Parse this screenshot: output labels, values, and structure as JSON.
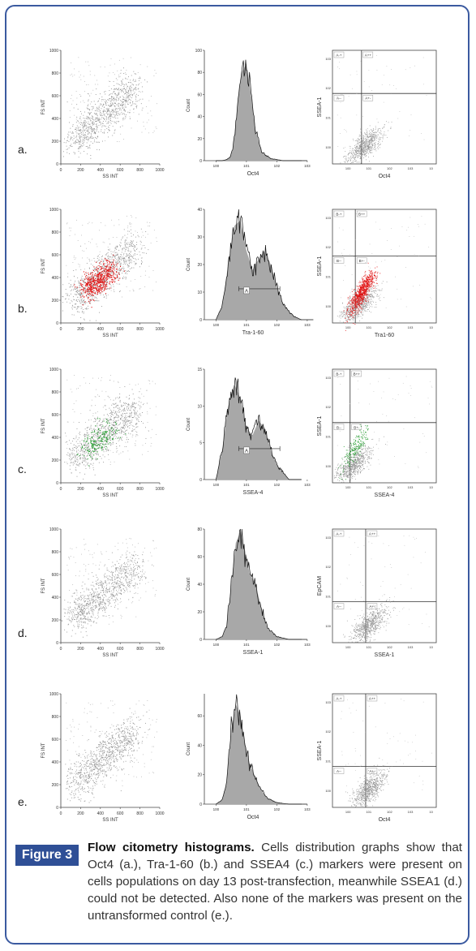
{
  "figure_label": "Figure 3",
  "caption_title": "Flow citometry histograms.",
  "caption_body": "Cells distribution graphs show that Oct4 (a.), Tra-1-60 (b.) and SSEA4 (c.) markers were present on cells populations on day 13 post-transfection, meanwhile SSEA1 (d.) could not be detected. Also none of the markers was present on the untransformed control (e.).",
  "colors": {
    "frame": "#3b5aa0",
    "label_bg": "#2f4f96",
    "gray_dots": "#8f8f8f",
    "red_dots": "#e01010",
    "green_dots": "#1f9a2a",
    "hist_fill": "#a8a8a8"
  },
  "chart_data": [
    {
      "id": "a-scatter",
      "type": "scatter",
      "row": "a.",
      "xlabel": "SS INT",
      "ylabel": "FS INT",
      "x_ticks": [
        "0",
        "200",
        "400",
        "600",
        "800",
        "1000"
      ],
      "y_ticks": [
        "0",
        "200",
        "400",
        "600",
        "800",
        "1000"
      ],
      "xlim": [
        0,
        1000
      ],
      "ylim": [
        0,
        1000
      ],
      "points": [
        [
          220,
          260
        ],
        [
          300,
          330
        ],
        [
          400,
          420
        ],
        [
          500,
          480
        ],
        [
          600,
          560
        ],
        [
          700,
          620
        ],
        [
          800,
          700
        ],
        [
          200,
          210
        ],
        [
          350,
          360
        ]
      ]
    },
    {
      "id": "a-hist",
      "type": "area",
      "row": "a.",
      "xlabel": "Oct4",
      "ylabel": "Count",
      "y_ticks": [
        "0",
        "20",
        "40",
        "60",
        "80",
        "100"
      ],
      "ylim": [
        0,
        100
      ],
      "x_ticks": [
        "10^0",
        "10^1",
        "10^2",
        "10^3"
      ],
      "x": [
        0.0,
        0.2,
        0.35,
        0.45,
        0.55,
        0.65,
        0.75,
        0.85,
        1.0,
        1.15,
        1.3,
        1.5,
        1.8,
        2.2,
        3.0
      ],
      "values": [
        0,
        0,
        1,
        3,
        10,
        35,
        62,
        80,
        88,
        60,
        28,
        8,
        2,
        0,
        0
      ]
    },
    {
      "id": "a-quad",
      "type": "scatter",
      "row": "a.",
      "xlabel": "Oct4",
      "ylabel": "SSEA-1",
      "gates": [
        "A-+",
        "A++",
        "A--",
        "A+-"
      ],
      "gate_x": 0.28,
      "gate_y": 0.38,
      "x_ticks": [
        "10^0",
        "10^1",
        "10^2",
        "10^3",
        "10"
      ],
      "y_ticks": [
        "10^0",
        "10^1",
        "10^2",
        "10^3"
      ]
    },
    {
      "id": "b-scatter",
      "type": "scatter",
      "row": "b.",
      "xlabel": "SS INT",
      "ylabel": "FS INT",
      "x_ticks": [
        "0",
        "200",
        "400",
        "600",
        "800",
        "1000"
      ],
      "y_ticks": [
        "0",
        "200",
        "400",
        "600",
        "800",
        "1000"
      ],
      "xlim": [
        0,
        1000
      ],
      "ylim": [
        0,
        1000
      ],
      "series": [
        {
          "name": "",
          "color": "gray"
        },
        {
          "name": "",
          "color": "red"
        }
      ]
    },
    {
      "id": "b-hist",
      "type": "area",
      "row": "b.",
      "xlabel": "Tra-1-60",
      "ylabel": "Count",
      "y_ticks": [
        "0",
        "10",
        "20",
        "30",
        "40"
      ],
      "ylim": [
        0,
        40
      ],
      "x_ticks": [
        "10^0",
        "10^1",
        "10^2",
        "10^3"
      ],
      "gate_label": "A",
      "x": [
        0.0,
        0.2,
        0.4,
        0.6,
        0.8,
        1.0,
        1.2,
        1.4,
        1.6,
        1.8,
        2.0,
        2.2,
        2.4,
        2.6,
        2.8,
        3.2
      ],
      "values": [
        0,
        5,
        20,
        34,
        36,
        25,
        18,
        22,
        25,
        20,
        12,
        6,
        3,
        1,
        0,
        0
      ]
    },
    {
      "id": "b-quad",
      "type": "scatter",
      "row": "b.",
      "xlabel": "Tra1-60",
      "ylabel": "SSEA-1",
      "gates": [
        "B-+",
        "B++",
        "B--",
        "B+-"
      ],
      "gate_x": 0.22,
      "gate_y": 0.41,
      "x_ticks": [
        "10^0",
        "10^1",
        "10^2",
        "10^3",
        "10"
      ],
      "y_ticks": [
        "10^0",
        "10^1",
        "10^2",
        "10^3"
      ]
    },
    {
      "id": "c-scatter",
      "type": "scatter",
      "row": "c.",
      "xlabel": "SS INT",
      "ylabel": "FS INT",
      "x_ticks": [
        "0",
        "200",
        "400",
        "600",
        "800",
        "1000"
      ],
      "y_ticks": [
        "0",
        "200",
        "400",
        "600",
        "800",
        "1000"
      ],
      "xlim": [
        0,
        1000
      ],
      "ylim": [
        0,
        1000
      ],
      "series": [
        {
          "name": "",
          "color": "gray"
        },
        {
          "name": "",
          "color": "green"
        }
      ]
    },
    {
      "id": "c-hist",
      "type": "area",
      "row": "c.",
      "xlabel": "SSEA-4",
      "ylabel": "Count",
      "y_ticks": [
        "0",
        "5",
        "10",
        "15"
      ],
      "ylim": [
        0,
        15
      ],
      "x_ticks": [
        "10^0",
        "10^1",
        "10^2",
        "10^3"
      ],
      "gate_label": "A",
      "x": [
        0.0,
        0.2,
        0.4,
        0.6,
        0.8,
        1.0,
        1.2,
        1.4,
        1.6,
        1.8,
        2.0,
        2.2,
        2.4,
        2.8
      ],
      "values": [
        0,
        4,
        10,
        13,
        11,
        7,
        6,
        8,
        7,
        4,
        2,
        1,
        0,
        0
      ]
    },
    {
      "id": "c-quad",
      "type": "scatter",
      "row": "c.",
      "xlabel": "SSEA-4",
      "ylabel": "SSEA-1",
      "gates": [
        "B-+",
        "B++",
        "B--",
        "B+-"
      ],
      "gate_x": 0.17,
      "gate_y": 0.47,
      "x_ticks": [
        "10^0",
        "10^1",
        "10^2",
        "10^3",
        "10"
      ],
      "y_ticks": [
        "10^0",
        "10^1",
        "10^2",
        "10^3"
      ]
    },
    {
      "id": "d-scatter",
      "type": "scatter",
      "row": "d.",
      "xlabel": "SS INT",
      "ylabel": "FS INT",
      "x_ticks": [
        "0",
        "200",
        "400",
        "600",
        "800",
        "1000"
      ],
      "y_ticks": [
        "0",
        "200",
        "400",
        "600",
        "800",
        "1000"
      ],
      "xlim": [
        0,
        1000
      ],
      "ylim": [
        0,
        1000
      ]
    },
    {
      "id": "d-hist",
      "type": "area",
      "row": "d.",
      "xlabel": "SSEA-1",
      "ylabel": "Count",
      "y_ticks": [
        "0",
        "20",
        "40",
        "60",
        "80"
      ],
      "ylim": [
        0,
        80
      ],
      "x_ticks": [
        "10^0",
        "10^1",
        "10^2",
        "10^3"
      ],
      "x": [
        0.0,
        0.2,
        0.35,
        0.5,
        0.65,
        0.8,
        0.95,
        1.1,
        1.3,
        1.5,
        1.7,
        2.0,
        2.4,
        3.0
      ],
      "values": [
        0,
        2,
        10,
        40,
        70,
        78,
        65,
        48,
        40,
        22,
        8,
        2,
        0,
        0
      ]
    },
    {
      "id": "d-quad",
      "type": "scatter",
      "row": "d.",
      "xlabel": "SSEA-1",
      "ylabel": "EpCAM",
      "gates": [
        "A-+",
        "A++",
        "A--",
        "A+-"
      ],
      "gate_x": 0.32,
      "gate_y": 0.64,
      "x_ticks": [
        "10^0",
        "10^1",
        "10^2",
        "10^3",
        "10"
      ],
      "y_ticks": [
        "10^0",
        "10^1",
        "10^2",
        "10^3"
      ]
    },
    {
      "id": "e-scatter",
      "type": "scatter",
      "row": "e.",
      "xlabel": "SS INT",
      "ylabel": "FS INT",
      "x_ticks": [
        "0",
        "200",
        "400",
        "600",
        "800",
        "1000"
      ],
      "y_ticks": [
        "0",
        "200",
        "400",
        "600",
        "800",
        "1000"
      ],
      "xlim": [
        0,
        1000
      ],
      "ylim": [
        0,
        1000
      ]
    },
    {
      "id": "e-hist",
      "type": "area",
      "row": "e.",
      "xlabel": "Oct4",
      "ylabel": "Count",
      "y_ticks": [
        "0",
        "20",
        "40",
        "60"
      ],
      "ylim": [
        0,
        75
      ],
      "x_ticks": [
        "10^0",
        "10^1",
        "10^2",
        "10^3"
      ],
      "x": [
        0.0,
        0.2,
        0.35,
        0.5,
        0.65,
        0.8,
        0.95,
        1.1,
        1.3,
        1.5,
        1.7,
        2.0,
        2.4,
        3.0
      ],
      "values": [
        0,
        3,
        15,
        50,
        68,
        60,
        42,
        28,
        18,
        9,
        4,
        1,
        0,
        0
      ]
    },
    {
      "id": "e-quad",
      "type": "scatter",
      "row": "e.",
      "xlabel": "Oct4",
      "ylabel": "SSEA-1",
      "gates": [
        "A-+",
        "A++",
        "A--",
        "A+-"
      ],
      "gate_x": 0.32,
      "gate_y": 0.64,
      "x_ticks": [
        "10^0",
        "10^1",
        "10^2",
        "10^3",
        "10"
      ],
      "y_ticks": [
        "10^0",
        "10^1",
        "10^2",
        "10^3"
      ]
    }
  ],
  "row_labels": [
    "a.",
    "b.",
    "c.",
    "d.",
    "e."
  ]
}
